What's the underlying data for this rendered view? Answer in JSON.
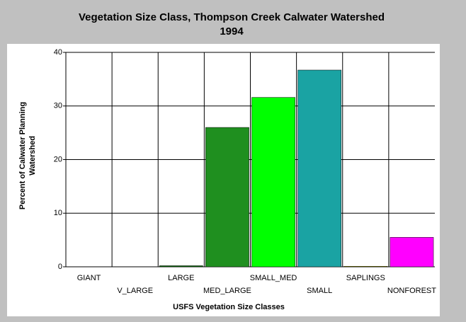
{
  "chart_data": {
    "type": "bar",
    "title": [
      "Vegetation Size Class, Thompson Creek Calwater Watershed",
      "1994"
    ],
    "xlabel": "USFS Vegetation Size Classes",
    "ylabel": [
      "Percent of Calwater Planning",
      "Watershed"
    ],
    "categories": [
      "GIANT",
      "V_LARGE",
      "LARGE",
      "MED_LARGE",
      "SMALL_MED",
      "SMALL",
      "SAPLINGS",
      "NONFOREST"
    ],
    "values": [
      0,
      0,
      0.2,
      26,
      31.6,
      36.7,
      0.1,
      5.5
    ],
    "colors": [
      "#006400",
      "#006400",
      "#0a6e0a",
      "#1f8f1f",
      "#00ff00",
      "#1aa3a3",
      "#ffff00",
      "#ff00ff"
    ],
    "ylim": [
      0,
      40
    ],
    "yticks": [
      0,
      10,
      20,
      30,
      40
    ],
    "grid": true
  }
}
